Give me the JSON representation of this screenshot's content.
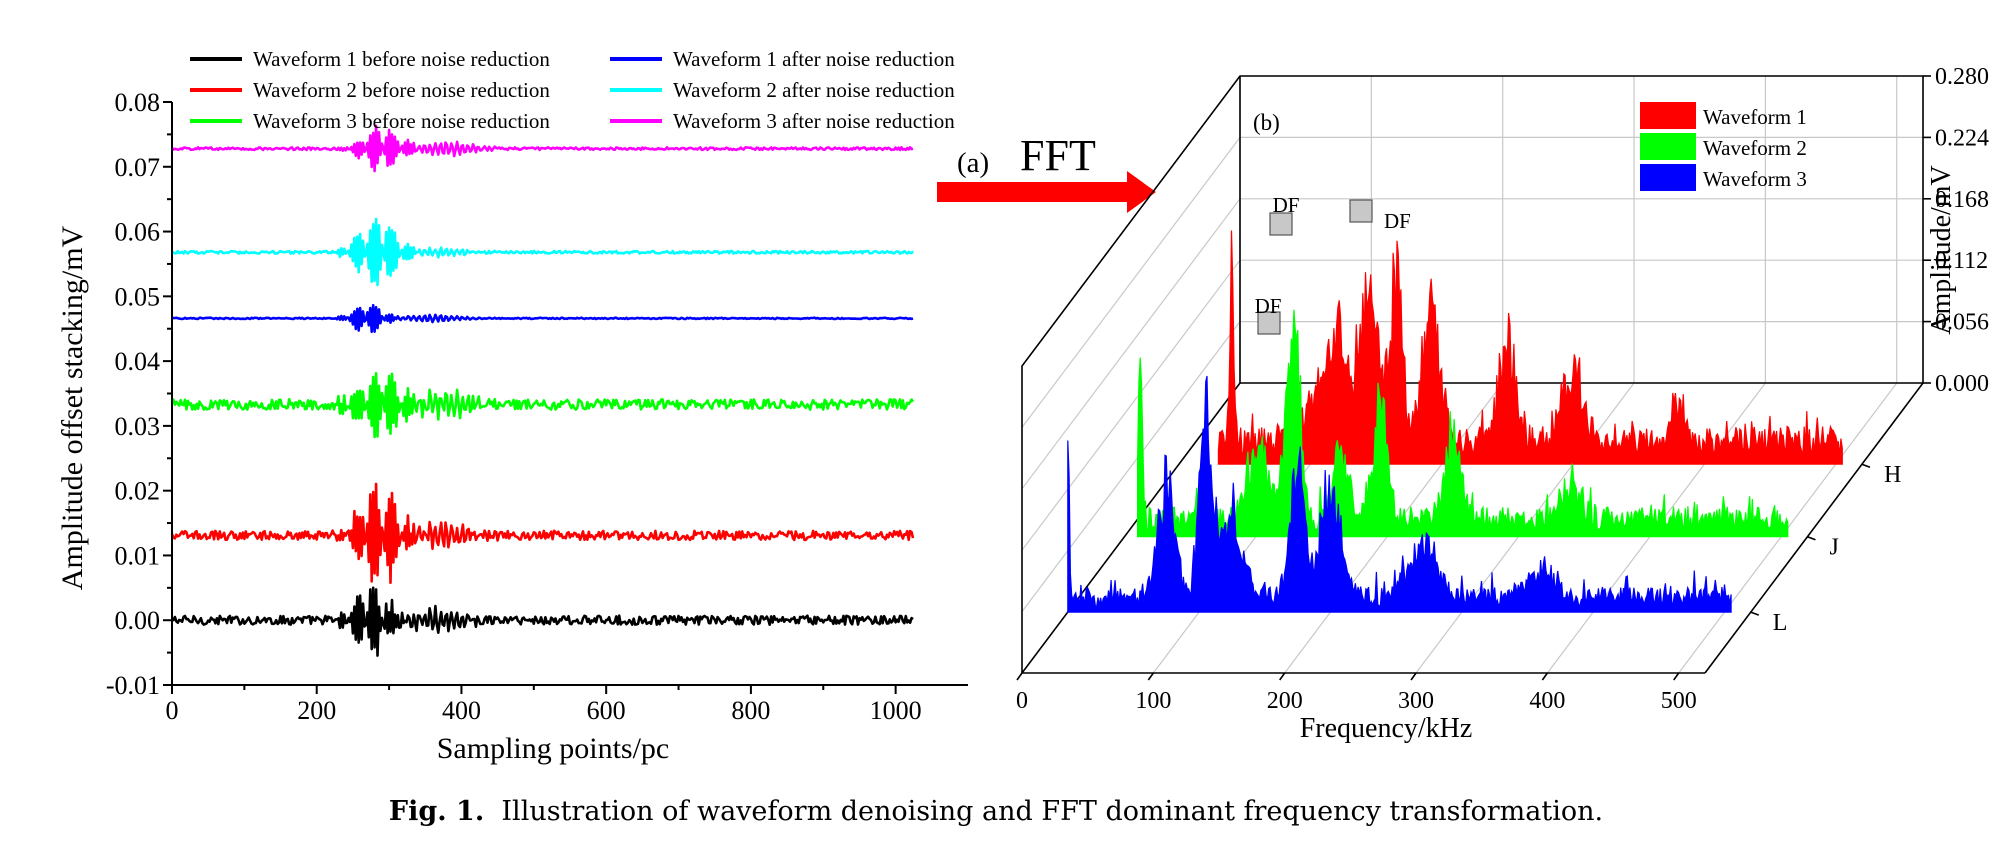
{
  "caption": {
    "label": "Fig. 1.",
    "text": "Illustration of waveform denoising and FFT dominant frequency transformation."
  },
  "arrow": {
    "panel_label": "(a)",
    "text": "FFT"
  },
  "chart_data": [
    {
      "type": "line",
      "panel": "(a)",
      "xlabel": "Sampling points/pc",
      "ylabel": "Amplitude offset stacking/mV",
      "xlim": [
        0,
        1100
      ],
      "ylim": [
        -0.01,
        0.08
      ],
      "xticks": [
        0,
        200,
        400,
        600,
        800,
        1000
      ],
      "yticks": [
        -0.01,
        0.0,
        0.01,
        0.02,
        0.03,
        0.04,
        0.05,
        0.06,
        0.07,
        0.08
      ],
      "ytick_labels": [
        "-0.01",
        "0.00",
        "0.01",
        "0.02",
        "0.03",
        "0.04",
        "0.05",
        "0.06",
        "0.07",
        "0.08"
      ],
      "grid": false,
      "legend_position": "top",
      "series": [
        {
          "name": "Waveform 1 before noise reduction",
          "color": "#000000",
          "offset": 0.0,
          "x_end": 1024,
          "noise": 0.0007,
          "burst_center": 275,
          "burst_amp": 0.0065,
          "burst_width": 22,
          "tail_amp": 0.0016
        },
        {
          "name": "Waveform 2 before noise reduction",
          "color": "#ff0000",
          "offset": 0.0131,
          "x_end": 1024,
          "noise": 0.0007,
          "burst_center": 285,
          "burst_amp": 0.009,
          "burst_width": 26,
          "tail_amp": 0.0018
        },
        {
          "name": "Waveform 3 before noise reduction",
          "color": "#00ff00",
          "offset": 0.0333,
          "x_end": 1024,
          "noise": 0.0008,
          "burst_center": 290,
          "burst_amp": 0.006,
          "burst_width": 30,
          "tail_amp": 0.0018
        },
        {
          "name": "Waveform 1 after noise reduction",
          "color": "#0000ff",
          "offset": 0.0466,
          "x_end": 1024,
          "noise": 0.0001,
          "burst_center": 272,
          "burst_amp": 0.003,
          "burst_width": 18,
          "tail_amp": 0.0005
        },
        {
          "name": "Waveform 2 after noise reduction",
          "color": "#00ffff",
          "offset": 0.0568,
          "x_end": 1024,
          "noise": 0.0002,
          "burst_center": 285,
          "burst_amp": 0.0065,
          "burst_width": 24,
          "tail_amp": 0.0006
        },
        {
          "name": "Waveform 3 after noise reduction",
          "color": "#ff00ff",
          "offset": 0.0728,
          "x_end": 1024,
          "noise": 0.0002,
          "burst_center": 290,
          "burst_amp": 0.004,
          "burst_width": 24,
          "tail_amp": 0.001
        }
      ]
    },
    {
      "type": "area",
      "panel": "(b)",
      "projection": "3d-waterfall",
      "xlabel": "Frequency/kHz",
      "zlabel": "Amplitude/mV",
      "xlim": [
        0,
        520
      ],
      "zlim": [
        0,
        0.28
      ],
      "xticks": [
        0,
        100,
        200,
        300,
        400,
        500
      ],
      "zticks": [
        0.0,
        0.056,
        0.112,
        0.168,
        0.224,
        0.28
      ],
      "ztick_labels": [
        "0.000",
        "0.056",
        "0.112",
        "0.168",
        "0.224",
        "0.280"
      ],
      "depth_labels": [
        "H",
        "J",
        "L"
      ],
      "legend_position": "top-right",
      "series": [
        {
          "name": "Waveform 1",
          "color": "#ff0000",
          "depth_label": "H",
          "x_start": 30,
          "x_end": 505,
          "baseline": 0.015,
          "peaks": [
            [
              40,
              0.205,
              1.5
            ],
            [
              105,
              0.05,
              10
            ],
            [
              122,
              0.11,
              8
            ],
            [
              145,
              0.2,
              6
            ],
            [
              165,
              0.18,
              5
            ],
            [
              192,
              0.14,
              7
            ],
            [
              250,
              0.12,
              6
            ],
            [
              300,
              0.08,
              8
            ],
            [
              380,
              0.05,
              5
            ]
          ]
        },
        {
          "name": "Waveform 2",
          "color": "#00ff00",
          "depth_label": "J",
          "x_start": 10,
          "x_end": 505,
          "baseline": 0.012,
          "peaks": [
            [
              12,
              0.17,
              1.5
            ],
            [
              102,
              0.08,
              8
            ],
            [
              128,
              0.245,
              5
            ],
            [
              165,
              0.08,
              6
            ],
            [
              195,
              0.13,
              5
            ],
            [
              250,
              0.1,
              6
            ],
            [
              340,
              0.04,
              6
            ]
          ]
        },
        {
          "name": "Waveform 3",
          "color": "#0000ff",
          "depth_label": "L",
          "x_start": 0,
          "x_end": 505,
          "baseline": 0.01,
          "peaks": [
            [
              0,
              0.175,
              1.2
            ],
            [
              75,
              0.13,
              6
            ],
            [
              105,
              0.2,
              5
            ],
            [
              125,
              0.09,
              8
            ],
            [
              175,
              0.16,
              5
            ],
            [
              200,
              0.12,
              8
            ],
            [
              270,
              0.06,
              10
            ],
            [
              360,
              0.03,
              10
            ]
          ]
        }
      ],
      "annotations": [
        {
          "text": "DF",
          "series": "Waveform 1"
        },
        {
          "text": "DF",
          "series": "Waveform 2"
        },
        {
          "text": "DF",
          "series": "Waveform 3"
        }
      ]
    }
  ]
}
